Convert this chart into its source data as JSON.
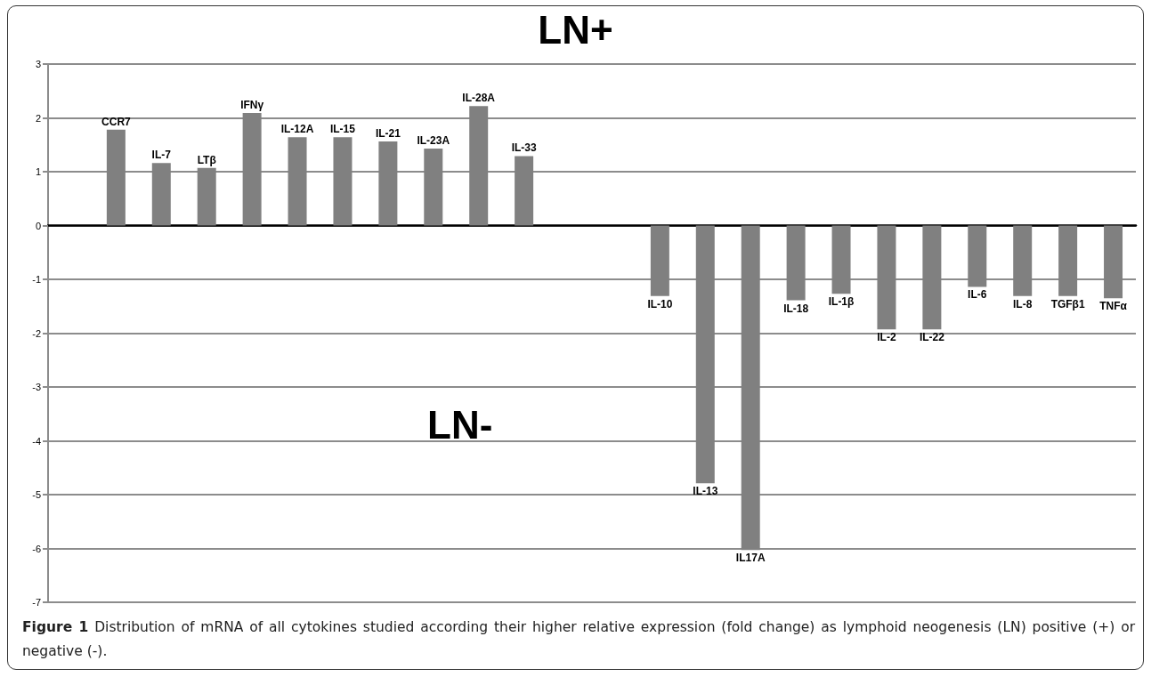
{
  "chart_data": {
    "type": "bar",
    "title": "LN+",
    "categories": [
      null,
      "CCR7",
      "IL-7",
      "LTβ",
      "IFNγ",
      "IL-12A",
      "IL-15",
      "IL-21",
      "IL-23A",
      "IL-28A",
      "IL-33",
      null,
      null,
      "IL-10",
      "IL-13",
      "IL17A",
      "IL-18",
      "IL-1β",
      "IL-2",
      "IL-22",
      "IL-6",
      "IL-8",
      "TGFβ1",
      "TNFα"
    ],
    "values": [
      null,
      1.78,
      1.16,
      1.07,
      2.09,
      1.64,
      1.64,
      1.56,
      1.43,
      2.22,
      1.29,
      null,
      null,
      -1.31,
      -4.79,
      -6.03,
      -1.39,
      -1.27,
      -1.93,
      -1.93,
      -1.14,
      -1.31,
      -1.31,
      -1.35
    ],
    "color": "#808080",
    "ylim": [
      -7,
      3
    ],
    "yticks": [
      -7,
      -6,
      -5,
      -4,
      -3,
      -2,
      -1,
      0,
      1,
      2,
      3
    ],
    "grid": "y",
    "annotations": [
      "LN-",
      "Figure 1",
      "Distribution of mRNA of all cytokines studied according their higher relative expression (fold change) as lymphoid neogenesis (LN) positive (+) or negative (-)."
    ]
  }
}
